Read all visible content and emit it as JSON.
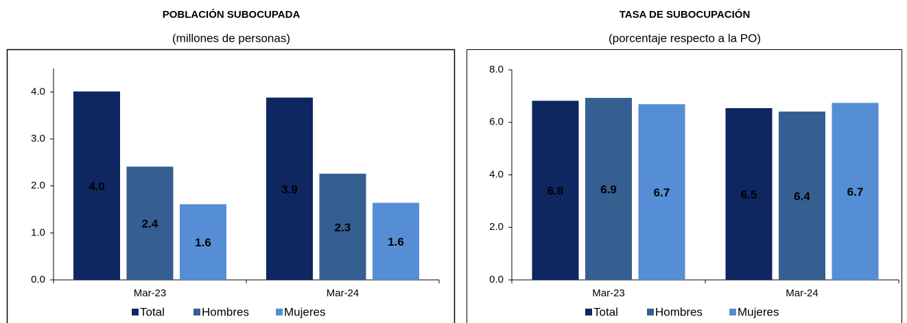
{
  "chart_data": [
    {
      "type": "bar",
      "title": "POBLACIÓN SUBOCUPADA",
      "subtitle": "(millones de personas)",
      "categories": [
        "Mar-23",
        "Mar-24"
      ],
      "series": [
        {
          "name": "Total",
          "color": "#0e2761",
          "values": [
            4.01,
            3.88
          ],
          "value_labels": [
            "4.0",
            "3.9"
          ]
        },
        {
          "name": "Hombres",
          "color": "#355f91",
          "values": [
            2.41,
            2.26
          ],
          "value_labels": [
            "2.4",
            "2.3"
          ]
        },
        {
          "name": "Mujeres",
          "color": "#558ed5",
          "values": [
            1.61,
            1.64
          ],
          "value_labels": [
            "1.6",
            "1.6"
          ]
        }
      ],
      "ylim": [
        0,
        4.5
      ],
      "yticks": [
        {
          "value": 0,
          "label": "0.0"
        },
        {
          "value": 1,
          "label": "1.0"
        },
        {
          "value": 2,
          "label": "2.0"
        },
        {
          "value": 3,
          "label": "3.0"
        },
        {
          "value": 4,
          "label": "4.0"
        }
      ],
      "grid": false,
      "legend": "bottom"
    },
    {
      "type": "bar",
      "title": "TASA DE SUBOCUPACIÓN",
      "subtitle": "(porcentaje respecto a la PO)",
      "categories": [
        "Mar-23",
        "Mar-24"
      ],
      "series": [
        {
          "name": "Total",
          "color": "#0e2761",
          "values": [
            6.82,
            6.54
          ],
          "value_labels": [
            "6.8",
            "6.5"
          ]
        },
        {
          "name": "Hombres",
          "color": "#355f91",
          "values": [
            6.93,
            6.41
          ],
          "value_labels": [
            "6.9",
            "6.4"
          ]
        },
        {
          "name": "Mujeres",
          "color": "#558ed5",
          "values": [
            6.69,
            6.74
          ],
          "value_labels": [
            "6.7",
            "6.7"
          ]
        }
      ],
      "ylim": [
        0,
        8
      ],
      "yticks": [
        {
          "value": 0,
          "label": "0.0"
        },
        {
          "value": 2,
          "label": "2.0"
        },
        {
          "value": 4,
          "label": "4.0"
        },
        {
          "value": 6,
          "label": "6.0"
        },
        {
          "value": 8,
          "label": "8.0"
        }
      ],
      "grid": false,
      "legend": "bottom"
    }
  ]
}
